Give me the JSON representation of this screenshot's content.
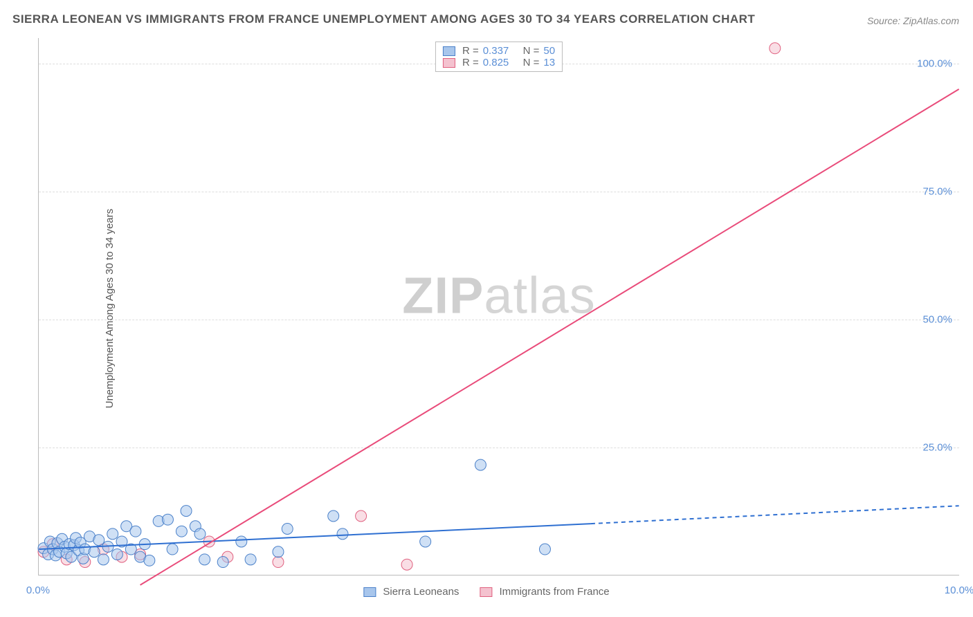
{
  "title": "SIERRA LEONEAN VS IMMIGRANTS FROM FRANCE UNEMPLOYMENT AMONG AGES 30 TO 34 YEARS CORRELATION CHART",
  "source": "Source: ZipAtlas.com",
  "ylabel": "Unemployment Among Ages 30 to 34 years",
  "watermark_zip": "ZIP",
  "watermark_atlas": "atlas",
  "chart": {
    "type": "scatter-with-regression",
    "background_color": "#ffffff",
    "grid_color": "#dddddd",
    "axis_color": "#bbbbbb",
    "label_color": "#5b8fd6",
    "xlim": [
      0,
      10
    ],
    "ylim": [
      0,
      105
    ],
    "xticks": [
      0,
      10
    ],
    "xtick_labels": [
      "0.0%",
      "10.0%"
    ],
    "yticks": [
      25,
      50,
      75,
      100
    ],
    "ytick_labels": [
      "25.0%",
      "50.0%",
      "75.0%",
      "100.0%"
    ],
    "marker_radius": 8,
    "marker_opacity": 0.55,
    "line_width": 2
  },
  "series": {
    "blue": {
      "label": "Sierra Leoneans",
      "fill": "#a8c6ec",
      "stroke": "#4a80c9",
      "line_color": "#2e6fd1",
      "R": "0.337",
      "N": "50",
      "points": [
        [
          0.05,
          5.2
        ],
        [
          0.1,
          4.0
        ],
        [
          0.12,
          6.5
        ],
        [
          0.15,
          5.0
        ],
        [
          0.18,
          3.8
        ],
        [
          0.2,
          6.2
        ],
        [
          0.22,
          4.5
        ],
        [
          0.25,
          7.0
        ],
        [
          0.28,
          5.5
        ],
        [
          0.3,
          4.2
        ],
        [
          0.33,
          6.0
        ],
        [
          0.35,
          3.5
        ],
        [
          0.38,
          5.8
        ],
        [
          0.4,
          7.2
        ],
        [
          0.43,
          4.8
        ],
        [
          0.45,
          6.3
        ],
        [
          0.48,
          3.2
        ],
        [
          0.5,
          5.0
        ],
        [
          0.55,
          7.5
        ],
        [
          0.6,
          4.5
        ],
        [
          0.65,
          6.8
        ],
        [
          0.7,
          3.0
        ],
        [
          0.75,
          5.5
        ],
        [
          0.8,
          8.0
        ],
        [
          0.85,
          4.0
        ],
        [
          0.9,
          6.5
        ],
        [
          0.95,
          9.5
        ],
        [
          1.0,
          5.0
        ],
        [
          1.05,
          8.5
        ],
        [
          1.1,
          3.5
        ],
        [
          1.15,
          6.0
        ],
        [
          1.2,
          2.8
        ],
        [
          1.3,
          10.5
        ],
        [
          1.4,
          10.8
        ],
        [
          1.45,
          5.0
        ],
        [
          1.55,
          8.5
        ],
        [
          1.6,
          12.5
        ],
        [
          1.7,
          9.5
        ],
        [
          1.75,
          8.0
        ],
        [
          1.8,
          3.0
        ],
        [
          2.0,
          2.5
        ],
        [
          2.2,
          6.5
        ],
        [
          2.3,
          3.0
        ],
        [
          2.6,
          4.5
        ],
        [
          2.7,
          9.0
        ],
        [
          3.2,
          11.5
        ],
        [
          3.3,
          8.0
        ],
        [
          4.2,
          6.5
        ],
        [
          4.8,
          21.5
        ],
        [
          5.5,
          5.0
        ]
      ],
      "regression": {
        "solid": {
          "x1": 0,
          "y1": 5.0,
          "x2": 6.0,
          "y2": 10.0
        },
        "dashed": {
          "x1": 6.0,
          "y1": 10.0,
          "x2": 10.0,
          "y2": 13.5
        }
      }
    },
    "pink": {
      "label": "Immigrants from France",
      "fill": "#f4c2cf",
      "stroke": "#e0607f",
      "line_color": "#e94b7a",
      "R": "0.825",
      "N": "13",
      "points": [
        [
          0.05,
          4.5
        ],
        [
          0.15,
          6.0
        ],
        [
          0.3,
          3.0
        ],
        [
          0.5,
          2.5
        ],
        [
          0.7,
          5.0
        ],
        [
          0.9,
          3.5
        ],
        [
          1.1,
          4.0
        ],
        [
          1.85,
          6.5
        ],
        [
          2.05,
          3.5
        ],
        [
          2.6,
          2.5
        ],
        [
          3.5,
          11.5
        ],
        [
          4.0,
          2.0
        ],
        [
          8.0,
          103.0
        ]
      ],
      "regression": {
        "solid": {
          "x1": 1.1,
          "y1": -2.0,
          "x2": 10.0,
          "y2": 95.0
        }
      }
    }
  },
  "legend_top": {
    "R_label": "R =",
    "N_label": "N ="
  }
}
